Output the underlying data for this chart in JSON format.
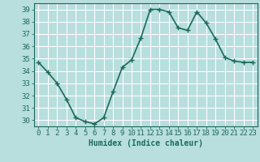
{
  "x": [
    0,
    1,
    2,
    3,
    4,
    5,
    6,
    7,
    8,
    9,
    10,
    11,
    12,
    13,
    14,
    15,
    16,
    17,
    18,
    19,
    20,
    21,
    22,
    23
  ],
  "y": [
    34.7,
    33.9,
    33.0,
    31.7,
    30.2,
    29.9,
    29.7,
    30.2,
    32.3,
    34.3,
    34.9,
    36.7,
    39.0,
    39.0,
    38.8,
    37.5,
    37.3,
    38.8,
    37.9,
    36.6,
    35.1,
    34.8,
    34.7,
    34.7
  ],
  "line_color": "#1a6b5a",
  "bg_color": "#b8dede",
  "grid_color": "#ffffff",
  "xlabel": "Humidex (Indice chaleur)",
  "xlim": [
    -0.5,
    23.5
  ],
  "ylim": [
    29.5,
    39.5
  ],
  "yticks": [
    30,
    31,
    32,
    33,
    34,
    35,
    36,
    37,
    38,
    39
  ],
  "xticks": [
    0,
    1,
    2,
    3,
    4,
    5,
    6,
    7,
    8,
    9,
    10,
    11,
    12,
    13,
    14,
    15,
    16,
    17,
    18,
    19,
    20,
    21,
    22,
    23
  ],
  "tick_color": "#1a6b5a",
  "font_color": "#1a6b5a",
  "marker": "+",
  "marker_size": 4,
  "linewidth": 1.2,
  "xlabel_fontsize": 7,
  "tick_fontsize": 6.5
}
